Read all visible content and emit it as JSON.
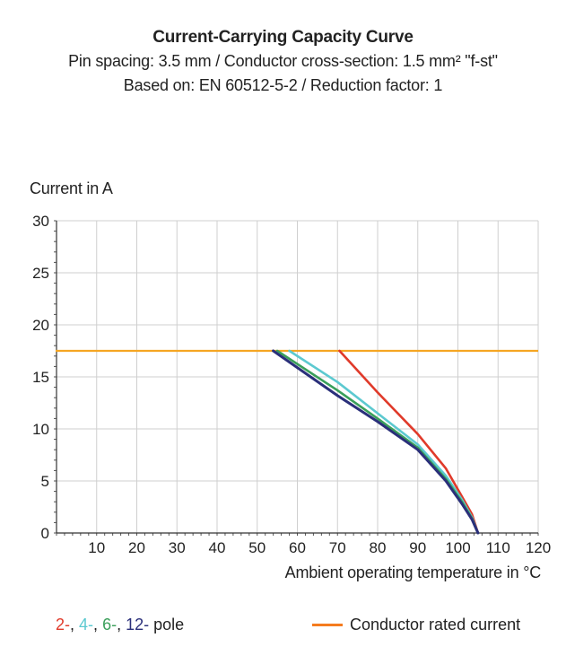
{
  "chart_data": {
    "type": "line",
    "title": "Current-Carrying Capacity Curve",
    "subtitle_lines": [
      "Pin spacing: 3.5 mm / Conductor cross-section: 1.5 mm² \"f-st\"",
      "Based on: EN 60512-5-2 / Reduction factor: 1"
    ],
    "ylabel": "Current in A",
    "xlabel": "Ambient operating temperature in °C",
    "xlim": [
      0,
      120
    ],
    "ylim": [
      0,
      30
    ],
    "x_ticks": [
      "10",
      "20",
      "30",
      "40",
      "50",
      "60",
      "70",
      "80",
      "90",
      "100",
      "110",
      "120"
    ],
    "y_ticks": [
      "0",
      "5",
      "10",
      "15",
      "20",
      "25",
      "30"
    ],
    "grid": true,
    "rated_current": {
      "name": "Conductor rated current",
      "value": 17.5,
      "color": "#f5a623"
    },
    "series": [
      {
        "name": "2-",
        "color": "#e03a2a",
        "points": [
          [
            70.5,
            17.5
          ],
          [
            80,
            13.5
          ],
          [
            90,
            9.5
          ],
          [
            97,
            6.2
          ],
          [
            101,
            3.5
          ],
          [
            103.5,
            1.8
          ],
          [
            105,
            0
          ]
        ]
      },
      {
        "name": "4-",
        "color": "#5cc9d0",
        "points": [
          [
            58,
            17.5
          ],
          [
            70,
            14.5
          ],
          [
            80,
            11.5
          ],
          [
            90,
            8.5
          ],
          [
            97,
            5.5
          ],
          [
            101,
            3.2
          ],
          [
            103.5,
            1.5
          ],
          [
            105,
            0
          ]
        ]
      },
      {
        "name": "6-",
        "color": "#3a9f5a",
        "points": [
          [
            55,
            17.5
          ],
          [
            70,
            13.7
          ],
          [
            80,
            11
          ],
          [
            90,
            8.2
          ],
          [
            97,
            5.2
          ],
          [
            101,
            3
          ],
          [
            103.5,
            1.4
          ],
          [
            105,
            0
          ]
        ]
      },
      {
        "name": "12-",
        "color": "#2a2f7a",
        "points": [
          [
            54,
            17.5
          ],
          [
            70,
            13.2
          ],
          [
            80,
            10.7
          ],
          [
            90,
            8
          ],
          [
            97,
            5
          ],
          [
            101,
            2.8
          ],
          [
            103.5,
            1.3
          ],
          [
            105,
            0
          ]
        ]
      }
    ],
    "legend": {
      "pole_suffix": "pole",
      "separator": ", ",
      "rated_label": "Conductor rated current",
      "rated_color": "#f57c1f"
    }
  }
}
